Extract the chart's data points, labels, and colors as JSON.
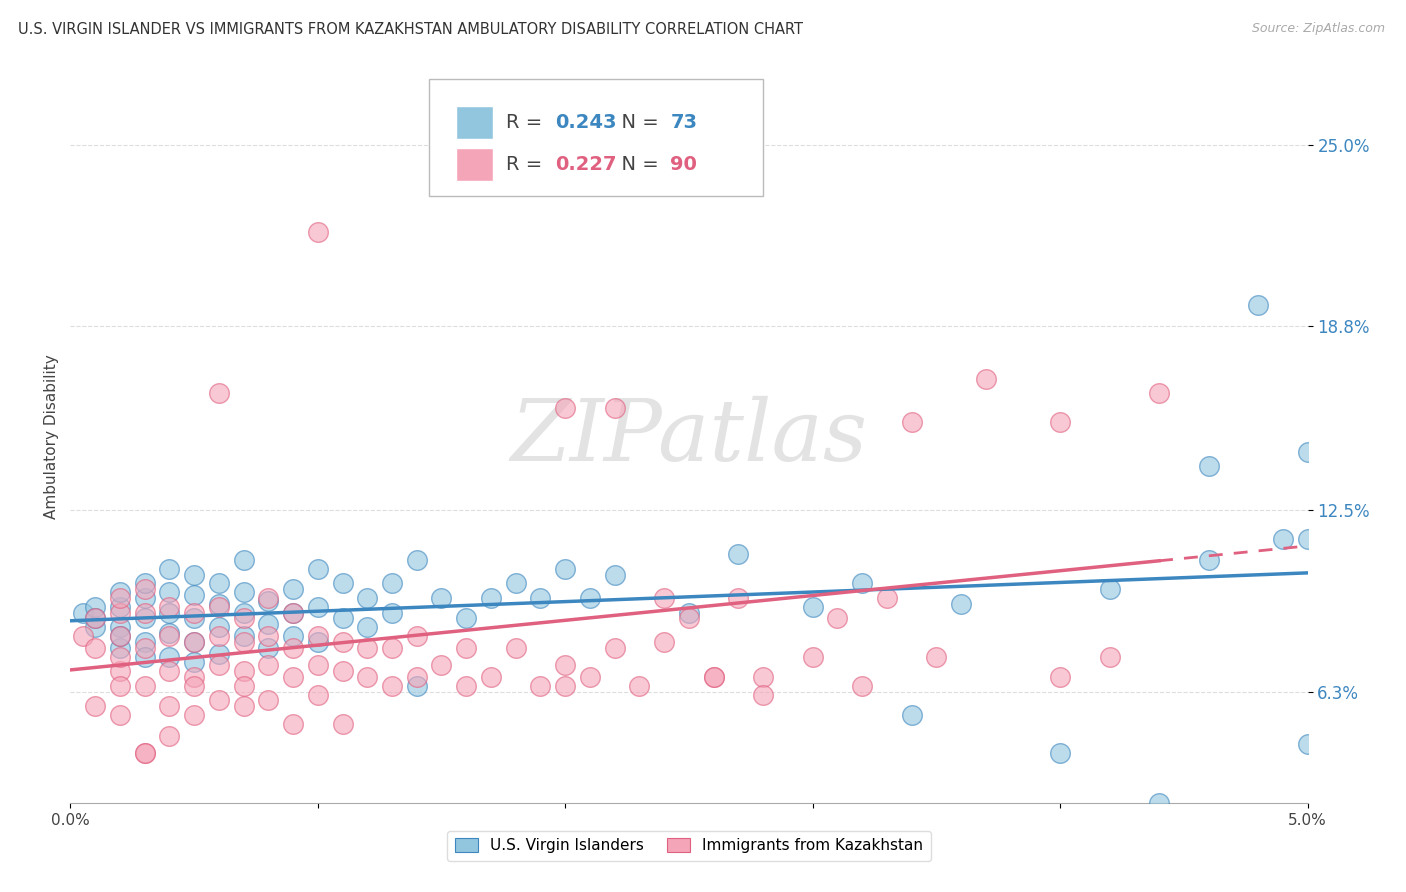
{
  "title": "U.S. VIRGIN ISLANDER VS IMMIGRANTS FROM KAZAKHSTAN AMBULATORY DISABILITY CORRELATION CHART",
  "source": "Source: ZipAtlas.com",
  "ylabel": "Ambulatory Disability",
  "ytick_labels": [
    "6.3%",
    "12.5%",
    "18.8%",
    "25.0%"
  ],
  "ytick_values": [
    0.063,
    0.125,
    0.188,
    0.25
  ],
  "xlim": [
    0.0,
    0.05
  ],
  "ylim": [
    0.025,
    0.275
  ],
  "legend_blue_R": "0.243",
  "legend_blue_N": "73",
  "legend_pink_R": "0.227",
  "legend_pink_N": "90",
  "color_blue": "#92c5de",
  "color_pink": "#f4a5b8",
  "color_blue_dark": "#3d87c0",
  "color_pink_dark": "#e06080",
  "color_blue_text": "#3d87c0",
  "color_pink_text": "#e06080",
  "watermark": "ZIPatlas",
  "blue_x": [
    0.0005,
    0.001,
    0.001,
    0.001,
    0.002,
    0.002,
    0.002,
    0.002,
    0.002,
    0.003,
    0.003,
    0.003,
    0.003,
    0.003,
    0.004,
    0.004,
    0.004,
    0.004,
    0.004,
    0.005,
    0.005,
    0.005,
    0.005,
    0.005,
    0.006,
    0.006,
    0.006,
    0.006,
    0.007,
    0.007,
    0.007,
    0.007,
    0.008,
    0.008,
    0.008,
    0.009,
    0.009,
    0.009,
    0.01,
    0.01,
    0.01,
    0.011,
    0.011,
    0.012,
    0.012,
    0.013,
    0.013,
    0.014,
    0.015,
    0.016,
    0.017,
    0.018,
    0.019,
    0.02,
    0.021,
    0.022,
    0.025,
    0.027,
    0.03,
    0.032,
    0.034,
    0.036,
    0.04,
    0.042,
    0.044,
    0.046,
    0.048,
    0.046,
    0.049,
    0.05,
    0.05,
    0.05,
    0.014
  ],
  "blue_y": [
    0.09,
    0.085,
    0.092,
    0.088,
    0.078,
    0.085,
    0.092,
    0.097,
    0.082,
    0.08,
    0.088,
    0.095,
    0.075,
    0.1,
    0.083,
    0.09,
    0.097,
    0.075,
    0.105,
    0.08,
    0.088,
    0.096,
    0.073,
    0.103,
    0.085,
    0.093,
    0.076,
    0.1,
    0.082,
    0.09,
    0.097,
    0.108,
    0.078,
    0.086,
    0.094,
    0.082,
    0.09,
    0.098,
    0.08,
    0.092,
    0.105,
    0.088,
    0.1,
    0.085,
    0.095,
    0.09,
    0.1,
    0.108,
    0.095,
    0.088,
    0.095,
    0.1,
    0.095,
    0.105,
    0.095,
    0.103,
    0.09,
    0.11,
    0.092,
    0.1,
    0.055,
    0.093,
    0.042,
    0.098,
    0.025,
    0.108,
    0.195,
    0.14,
    0.115,
    0.115,
    0.145,
    0.045,
    0.065
  ],
  "pink_x": [
    0.0005,
    0.001,
    0.001,
    0.001,
    0.002,
    0.002,
    0.002,
    0.002,
    0.002,
    0.003,
    0.003,
    0.003,
    0.003,
    0.004,
    0.004,
    0.004,
    0.004,
    0.005,
    0.005,
    0.005,
    0.005,
    0.006,
    0.006,
    0.006,
    0.006,
    0.007,
    0.007,
    0.007,
    0.007,
    0.008,
    0.008,
    0.008,
    0.009,
    0.009,
    0.009,
    0.01,
    0.01,
    0.01,
    0.011,
    0.011,
    0.012,
    0.012,
    0.013,
    0.013,
    0.014,
    0.014,
    0.015,
    0.016,
    0.016,
    0.017,
    0.018,
    0.019,
    0.02,
    0.02,
    0.021,
    0.022,
    0.023,
    0.024,
    0.025,
    0.026,
    0.027,
    0.028,
    0.03,
    0.031,
    0.032,
    0.033,
    0.034,
    0.035,
    0.037,
    0.04,
    0.04,
    0.042,
    0.044,
    0.02,
    0.022,
    0.024,
    0.026,
    0.028,
    0.011,
    0.01,
    0.009,
    0.008,
    0.007,
    0.006,
    0.005,
    0.004,
    0.003,
    0.002,
    0.003,
    0.002
  ],
  "pink_y": [
    0.082,
    0.058,
    0.078,
    0.088,
    0.07,
    0.082,
    0.09,
    0.075,
    0.095,
    0.065,
    0.078,
    0.09,
    0.098,
    0.07,
    0.082,
    0.092,
    0.058,
    0.068,
    0.08,
    0.09,
    0.065,
    0.072,
    0.082,
    0.092,
    0.06,
    0.07,
    0.08,
    0.088,
    0.065,
    0.072,
    0.082,
    0.095,
    0.068,
    0.078,
    0.09,
    0.072,
    0.082,
    0.062,
    0.07,
    0.08,
    0.068,
    0.078,
    0.065,
    0.078,
    0.068,
    0.082,
    0.072,
    0.065,
    0.078,
    0.068,
    0.078,
    0.065,
    0.072,
    0.16,
    0.068,
    0.078,
    0.065,
    0.095,
    0.088,
    0.068,
    0.095,
    0.068,
    0.075,
    0.088,
    0.065,
    0.095,
    0.155,
    0.075,
    0.17,
    0.068,
    0.155,
    0.075,
    0.165,
    0.065,
    0.16,
    0.08,
    0.068,
    0.062,
    0.052,
    0.22,
    0.052,
    0.06,
    0.058,
    0.165,
    0.055,
    0.048,
    0.042,
    0.055,
    0.042,
    0.065
  ]
}
